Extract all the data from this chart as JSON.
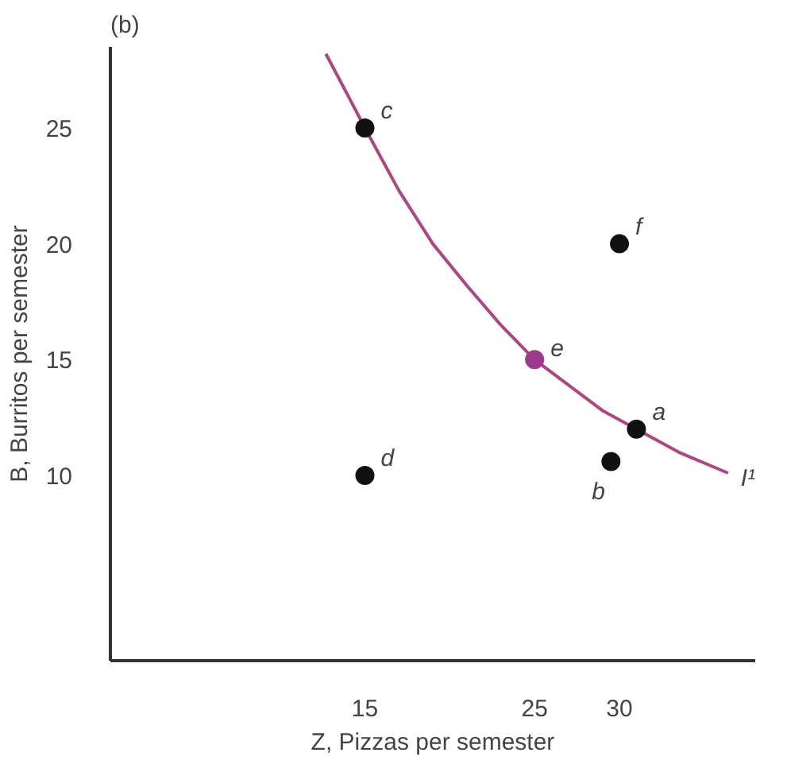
{
  "chart_data": {
    "type": "scatter",
    "title": "(b)",
    "xlabel": "Z, Pizzas per semester",
    "ylabel": "B, Burritos per semester",
    "xlim": [
      0,
      38
    ],
    "ylim": [
      2,
      28.5
    ],
    "xticks": [
      15,
      25,
      30
    ],
    "yticks": [
      10,
      15,
      20,
      25
    ],
    "grid": false,
    "marker": "circle",
    "series": [
      {
        "name": "I¹",
        "type": "line",
        "marker": "none",
        "color": "#b0467f",
        "x": [
          12.7,
          14,
          15,
          17,
          19,
          21,
          23,
          25,
          27,
          29,
          31,
          33.5,
          36.4
        ],
        "values": [
          28.2,
          26.4,
          25,
          22.3,
          20,
          18.2,
          16.5,
          15,
          13.9,
          12.8,
          12,
          11,
          10.1
        ]
      },
      {
        "color": "#111111",
        "x": [
          15,
          15,
          30,
          31,
          29.5
        ],
        "values": [
          25,
          10,
          20,
          12,
          10.6
        ]
      },
      {
        "color": "#9b3a8c",
        "x": [
          25
        ],
        "values": [
          15
        ]
      }
    ],
    "annotations": [
      {
        "text": "c",
        "x": 15,
        "y": 25
      },
      {
        "text": "d",
        "x": 15,
        "y": 10
      },
      {
        "text": "f",
        "x": 30,
        "y": 20
      },
      {
        "text": "e",
        "x": 25,
        "y": 15
      },
      {
        "text": "a",
        "x": 31,
        "y": 12
      },
      {
        "text": "b",
        "x": 29.5,
        "y": 10.6
      }
    ]
  }
}
